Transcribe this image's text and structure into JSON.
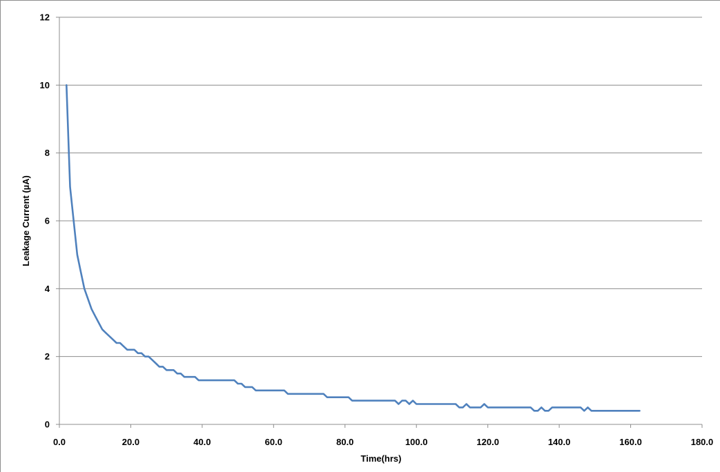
{
  "chart_data": {
    "type": "line",
    "title": "",
    "xlabel": "Time(hrs)",
    "ylabel": "Leakage Current (µA)",
    "xlim": [
      0,
      180
    ],
    "ylim": [
      0,
      12
    ],
    "x_ticks": [
      0,
      20,
      40,
      60,
      80,
      100,
      120,
      140,
      160,
      180
    ],
    "x_tick_labels": [
      "0.0",
      "20.0",
      "40.0",
      "60.0",
      "80.0",
      "100.0",
      "120.0",
      "140.0",
      "160.0",
      "180.0"
    ],
    "y_ticks": [
      0,
      2,
      4,
      6,
      8,
      10,
      12
    ],
    "y_tick_labels": [
      "0",
      "2",
      "4",
      "6",
      "8",
      "10",
      "12"
    ],
    "grid": "horizontal",
    "legend": "none",
    "series": [
      {
        "color": "#4f81bd",
        "points": [
          [
            2,
            10.0
          ],
          [
            3,
            7.0
          ],
          [
            4,
            6.0
          ],
          [
            5,
            5.0
          ],
          [
            6,
            4.5
          ],
          [
            7,
            4.0
          ],
          [
            8,
            3.7
          ],
          [
            9,
            3.4
          ],
          [
            10,
            3.2
          ],
          [
            11,
            3.0
          ],
          [
            12,
            2.8
          ],
          [
            13,
            2.7
          ],
          [
            14,
            2.6
          ],
          [
            15,
            2.5
          ],
          [
            16,
            2.4
          ],
          [
            17,
            2.4
          ],
          [
            18,
            2.3
          ],
          [
            19,
            2.2
          ],
          [
            20,
            2.2
          ],
          [
            21,
            2.2
          ],
          [
            22,
            2.1
          ],
          [
            23,
            2.1
          ],
          [
            24,
            2.0
          ],
          [
            25,
            2.0
          ],
          [
            26,
            1.9
          ],
          [
            27,
            1.8
          ],
          [
            28,
            1.7
          ],
          [
            29,
            1.7
          ],
          [
            30,
            1.6
          ],
          [
            31,
            1.6
          ],
          [
            32,
            1.6
          ],
          [
            33,
            1.5
          ],
          [
            34,
            1.5
          ],
          [
            35,
            1.4
          ],
          [
            36,
            1.4
          ],
          [
            37,
            1.4
          ],
          [
            38,
            1.4
          ],
          [
            39,
            1.3
          ],
          [
            40,
            1.3
          ],
          [
            42,
            1.3
          ],
          [
            44,
            1.3
          ],
          [
            46,
            1.3
          ],
          [
            48,
            1.3
          ],
          [
            49,
            1.3
          ],
          [
            50,
            1.2
          ],
          [
            51,
            1.2
          ],
          [
            52,
            1.1
          ],
          [
            54,
            1.1
          ],
          [
            55,
            1.0
          ],
          [
            57,
            1.0
          ],
          [
            60,
            1.0
          ],
          [
            63,
            1.0
          ],
          [
            64,
            0.9
          ],
          [
            66,
            0.9
          ],
          [
            70,
            0.9
          ],
          [
            74,
            0.9
          ],
          [
            75,
            0.8
          ],
          [
            78,
            0.8
          ],
          [
            81,
            0.8
          ],
          [
            82,
            0.7
          ],
          [
            85,
            0.7
          ],
          [
            90,
            0.7
          ],
          [
            94,
            0.7
          ],
          [
            95,
            0.6
          ],
          [
            96,
            0.7
          ],
          [
            97,
            0.7
          ],
          [
            98,
            0.6
          ],
          [
            99,
            0.7
          ],
          [
            100,
            0.6
          ],
          [
            104,
            0.6
          ],
          [
            108,
            0.6
          ],
          [
            111,
            0.6
          ],
          [
            112,
            0.5
          ],
          [
            113,
            0.5
          ],
          [
            114,
            0.6
          ],
          [
            115,
            0.5
          ],
          [
            117,
            0.5
          ],
          [
            118,
            0.5
          ],
          [
            119,
            0.6
          ],
          [
            120,
            0.5
          ],
          [
            124,
            0.5
          ],
          [
            128,
            0.5
          ],
          [
            132,
            0.5
          ],
          [
            133,
            0.4
          ],
          [
            134,
            0.4
          ],
          [
            135,
            0.5
          ],
          [
            136,
            0.4
          ],
          [
            137,
            0.4
          ],
          [
            138,
            0.5
          ],
          [
            140,
            0.5
          ],
          [
            143,
            0.5
          ],
          [
            146,
            0.5
          ],
          [
            147,
            0.4
          ],
          [
            148,
            0.5
          ],
          [
            149,
            0.4
          ],
          [
            152,
            0.4
          ],
          [
            156,
            0.4
          ],
          [
            160,
            0.4
          ],
          [
            162.5,
            0.4
          ]
        ]
      }
    ]
  }
}
